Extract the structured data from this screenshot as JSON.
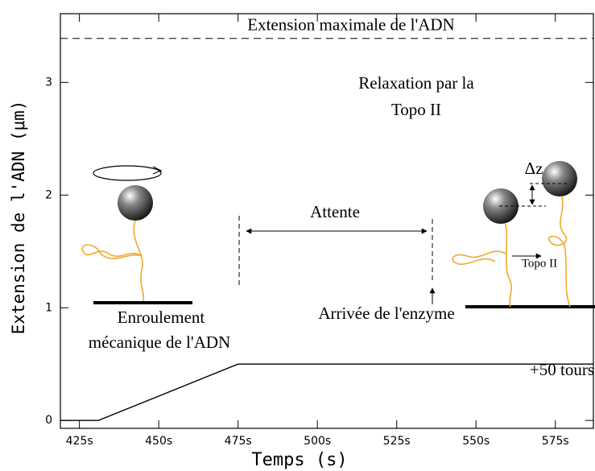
{
  "chart_data": {
    "type": "line",
    "xlabel": "Temps (s)",
    "ylabel": "Extension de l'ADN (μm)",
    "xlim": [
      419,
      587
    ],
    "ylim": [
      -0.07,
      3.61
    ],
    "xticks": [
      {
        "value": 425,
        "label": "425s"
      },
      {
        "value": 450,
        "label": "450s"
      },
      {
        "value": 475,
        "label": "475s"
      },
      {
        "value": 500,
        "label": "500s"
      },
      {
        "value": 525,
        "label": "525s"
      },
      {
        "value": 550,
        "label": "550s"
      },
      {
        "value": 575,
        "label": "575s"
      }
    ],
    "yticks": [
      0,
      1,
      2,
      3
    ],
    "x": [
      419,
      431,
      475,
      587
    ],
    "values": [
      0,
      0,
      0.5,
      0.5
    ],
    "color": "#000000",
    "hline": {
      "value": 3.39,
      "label": "Extension maximale de l'ADN"
    },
    "annotations": [
      "Relaxation par la",
      "Topo II",
      "Attente",
      "Arrivée de l'enzyme",
      "Enroulement",
      "mécanique de l'ADN",
      "Δz",
      "Topo II",
      "+50 tours"
    ]
  }
}
